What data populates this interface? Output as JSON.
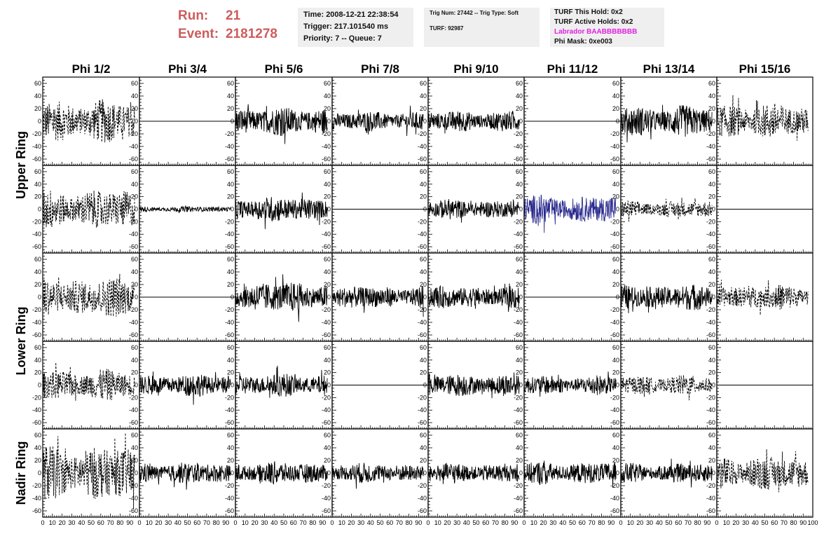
{
  "header": {
    "run_label": "Run:",
    "run_value": "21",
    "event_label": "Event:",
    "event_value": "2181278"
  },
  "info": {
    "time": "Time: 2008-12-21 22:38:54",
    "trigger": "Trigger: 217.101540 ms",
    "priority": "Priority: 7 -- Queue: 7",
    "trig_num": "Trig Num: 27442 -- Trig Type: Soft",
    "turf": "TURF: 92987",
    "turf_this_hold": "TURF This Hold: 0x2",
    "turf_active_holds": "TURF Active Holds: 0x2",
    "labrador": "Labrador BAABBBBBBB",
    "phi_mask": "Phi Mask: 0xe003"
  },
  "colors": {
    "title_red": "#cd5c5c",
    "labrador_magenta": "#e020e0",
    "trace": "#000000",
    "trace_highlight": "#2b2b8f",
    "panel_bg": "#efefef"
  },
  "chart_data": {
    "type": "line",
    "columns": [
      "Phi 1/2",
      "Phi 3/4",
      "Phi 5/6",
      "Phi 7/8",
      "Phi 9/10",
      "Phi 11/12",
      "Phi 13/14",
      "Phi 15/16"
    ],
    "ring_labels": [
      "Upper Ring",
      "Lower Ring",
      "Nadir Ring"
    ],
    "xlim": [
      0,
      100
    ],
    "ylim": [
      -70,
      70
    ],
    "x_tick_labels": [
      "0",
      "10",
      "20",
      "30",
      "40",
      "50",
      "60",
      "70",
      "80",
      "90",
      "100"
    ],
    "y_tick_labels": [
      "-60",
      "-40",
      "-20",
      "0",
      "20",
      "40",
      "60"
    ],
    "rows": [
      {
        "traces": [
          {
            "style": "dashed",
            "amplitude": 30
          },
          {
            "style": "flat",
            "amplitude": 0
          },
          {
            "style": "solid",
            "amplitude": 20
          },
          {
            "style": "solid",
            "amplitude": 14
          },
          {
            "style": "solid",
            "amplitude": 15
          },
          {
            "style": "flat",
            "amplitude": 0
          },
          {
            "style": "solid",
            "amplitude": 22
          },
          {
            "style": "dashed",
            "amplitude": 25
          }
        ]
      },
      {
        "traces": [
          {
            "style": "dashed",
            "amplitude": 28
          },
          {
            "style": "solid",
            "amplitude": 4
          },
          {
            "style": "solid",
            "amplitude": 18
          },
          {
            "style": "flat",
            "amplitude": 0
          },
          {
            "style": "solid",
            "amplitude": 14
          },
          {
            "style": "highlight",
            "amplitude": 20
          },
          {
            "style": "dashed",
            "amplitude": 12
          },
          {
            "style": "flat",
            "amplitude": 0
          }
        ]
      },
      {
        "traces": [
          {
            "style": "dashed",
            "amplitude": 28
          },
          {
            "style": "flat",
            "amplitude": 0
          },
          {
            "style": "solid",
            "amplitude": 22
          },
          {
            "style": "solid",
            "amplitude": 16
          },
          {
            "style": "solid",
            "amplitude": 16
          },
          {
            "style": "flat",
            "amplitude": 0
          },
          {
            "style": "solid",
            "amplitude": 18
          },
          {
            "style": "dashed",
            "amplitude": 18
          }
        ]
      },
      {
        "traces": [
          {
            "style": "dashed",
            "amplitude": 22
          },
          {
            "style": "solid",
            "amplitude": 16
          },
          {
            "style": "solid",
            "amplitude": 16
          },
          {
            "style": "flat",
            "amplitude": 0
          },
          {
            "style": "solid",
            "amplitude": 16
          },
          {
            "style": "solid",
            "amplitude": 14
          },
          {
            "style": "dashed",
            "amplitude": 14
          },
          {
            "style": "flat",
            "amplitude": 0
          }
        ]
      },
      {
        "traces": [
          {
            "style": "dashed",
            "amplitude": 38
          },
          {
            "style": "solid",
            "amplitude": 15
          },
          {
            "style": "solid",
            "amplitude": 16
          },
          {
            "style": "solid",
            "amplitude": 14
          },
          {
            "style": "solid",
            "amplitude": 14
          },
          {
            "style": "solid",
            "amplitude": 16
          },
          {
            "style": "solid",
            "amplitude": 14
          },
          {
            "style": "dashed",
            "amplitude": 24
          }
        ]
      }
    ]
  }
}
